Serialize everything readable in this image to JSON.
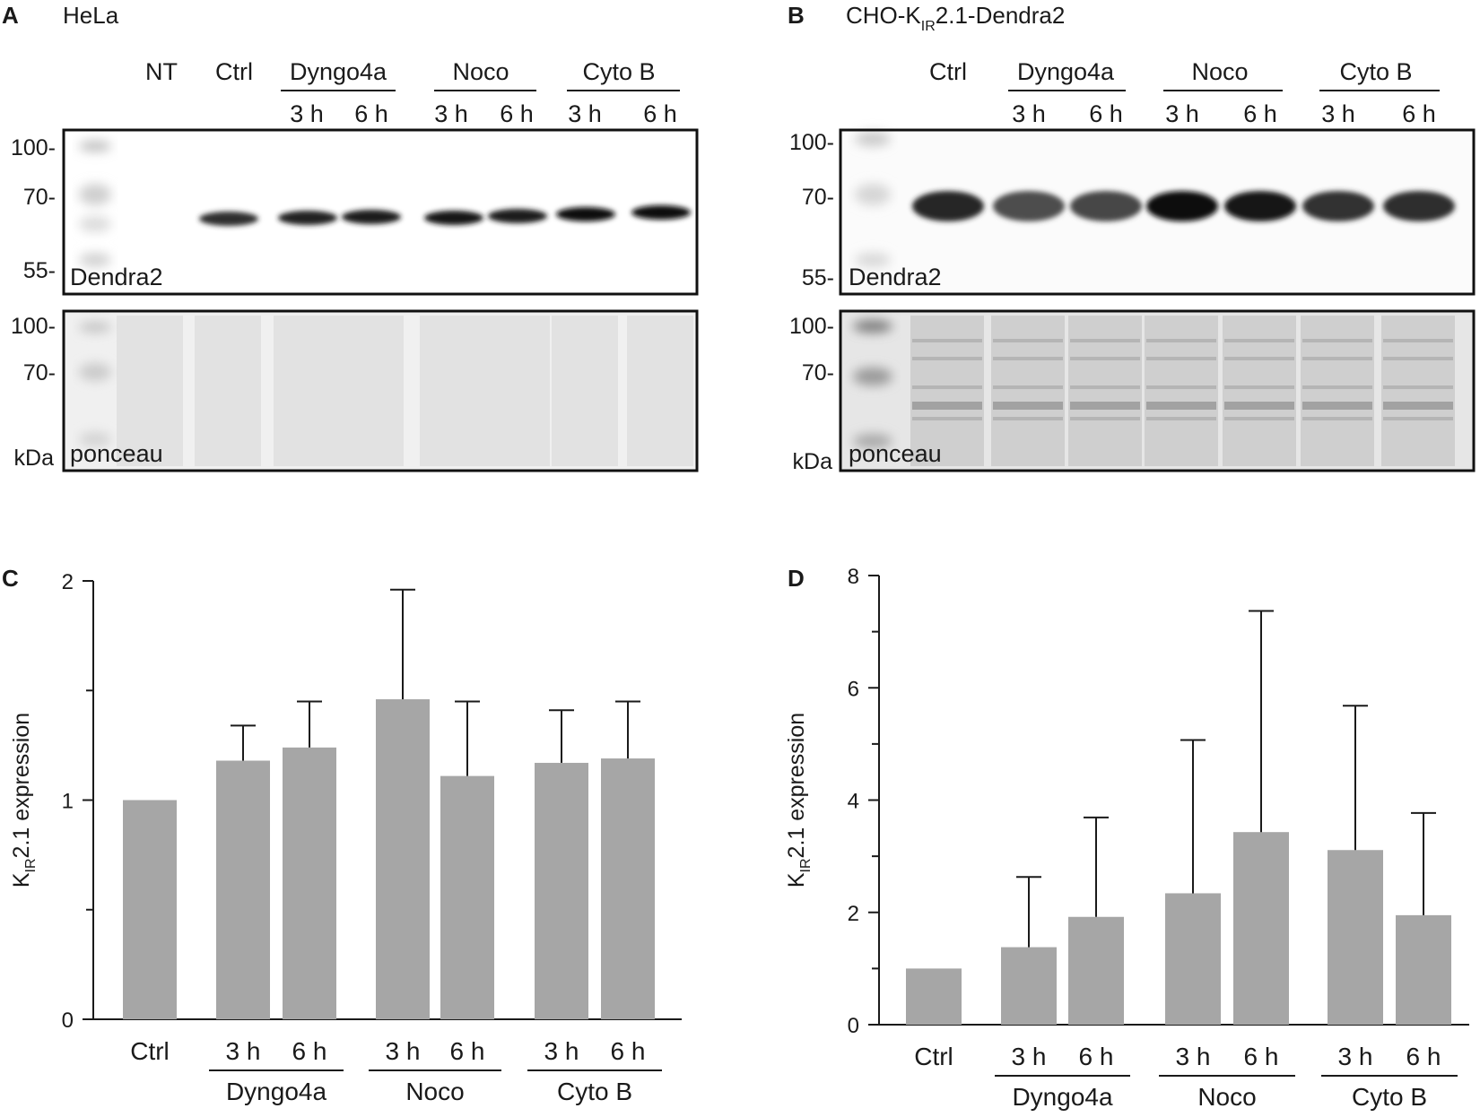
{
  "panels": {
    "A": {
      "letter": "A",
      "title": "HeLa",
      "lanes": [
        "NT",
        "Ctrl"
      ],
      "groups": [
        {
          "name": "Dyngo4a",
          "times": [
            "3 h",
            "6 h"
          ]
        },
        {
          "name": "Noco",
          "times": [
            "3 h",
            "6 h"
          ]
        },
        {
          "name": "Cyto B",
          "times": [
            "3 h",
            "6 h"
          ]
        }
      ],
      "blot_top": {
        "label": "Dendra2",
        "markers": [
          "100-",
          "70-",
          "55-"
        ]
      },
      "blot_bottom": {
        "label": "ponceau",
        "markers": [
          "100-",
          "70-"
        ],
        "unit": "kDa"
      },
      "band_intensity": [
        0.0,
        0.82,
        0.86,
        0.88,
        0.9,
        0.88,
        0.94,
        0.95
      ]
    },
    "B": {
      "letter": "B",
      "title_main": "CHO-K",
      "title_sub": "IR",
      "title_rest": "2.1-Dendra2",
      "lanes": [
        "Ctrl"
      ],
      "groups": [
        {
          "name": "Dyngo4a",
          "times": [
            "3 h",
            "6 h"
          ]
        },
        {
          "name": "Noco",
          "times": [
            "3 h",
            "6 h"
          ]
        },
        {
          "name": "Cyto B",
          "times": [
            "3 h",
            "6 h"
          ]
        }
      ],
      "blot_top": {
        "label": "Dendra2",
        "markers": [
          "100-",
          "70-",
          "55-"
        ]
      },
      "blot_bottom": {
        "label": "ponceau",
        "markers": [
          "100-",
          "70-"
        ],
        "unit": "kDa"
      },
      "band_intensity": [
        0.85,
        0.7,
        0.72,
        0.95,
        0.9,
        0.8,
        0.82
      ]
    }
  },
  "chart_data": [
    {
      "panel": "C",
      "type": "bar",
      "categories": [
        "Ctrl",
        "Dyngo4a 3 h",
        "Dyngo4a 6 h",
        "Noco 3 h",
        "Noco 6 h",
        "Cyto B 3 h",
        "Cyto B 6 h"
      ],
      "values": [
        1.0,
        1.18,
        1.24,
        1.46,
        1.11,
        1.17,
        1.19
      ],
      "error_upper": [
        1.0,
        1.34,
        1.45,
        1.96,
        1.45,
        1.41,
        1.45
      ],
      "ylabel_main": "K",
      "ylabel_sub": "IR",
      "ylabel_rest": "2.1 expression",
      "ylim": [
        0,
        2
      ],
      "yticks": [
        "0",
        "1",
        "2"
      ],
      "x_labels": {
        "ctrl": "Ctrl",
        "times": [
          "3 h",
          "6 h"
        ],
        "groups": [
          "Dyngo4a",
          "Noco",
          "Cyto B"
        ]
      },
      "bar_color": "#a6a6a6"
    },
    {
      "panel": "D",
      "type": "bar",
      "categories": [
        "Ctrl",
        "Dyngo4a 3 h",
        "Dyngo4a 6 h",
        "Noco 3 h",
        "Noco 6 h",
        "Cyto B 3 h",
        "Cyto B 6 h"
      ],
      "values": [
        1.0,
        1.38,
        1.92,
        2.34,
        3.43,
        3.11,
        1.95
      ],
      "error_upper": [
        1.0,
        2.63,
        3.69,
        5.07,
        7.37,
        5.68,
        3.77
      ],
      "ylabel_main": "K",
      "ylabel_sub": "IR",
      "ylabel_rest": "2.1 expression",
      "ylim": [
        0,
        8
      ],
      "yticks": [
        "0",
        "2",
        "4",
        "6",
        "8"
      ],
      "x_labels": {
        "ctrl": "Ctrl",
        "times": [
          "3 h",
          "6 h"
        ],
        "groups": [
          "Dyngo4a",
          "Noco",
          "Cyto B"
        ]
      },
      "bar_color": "#a6a6a6"
    }
  ],
  "panel_letters": {
    "C": "C",
    "D": "D"
  }
}
